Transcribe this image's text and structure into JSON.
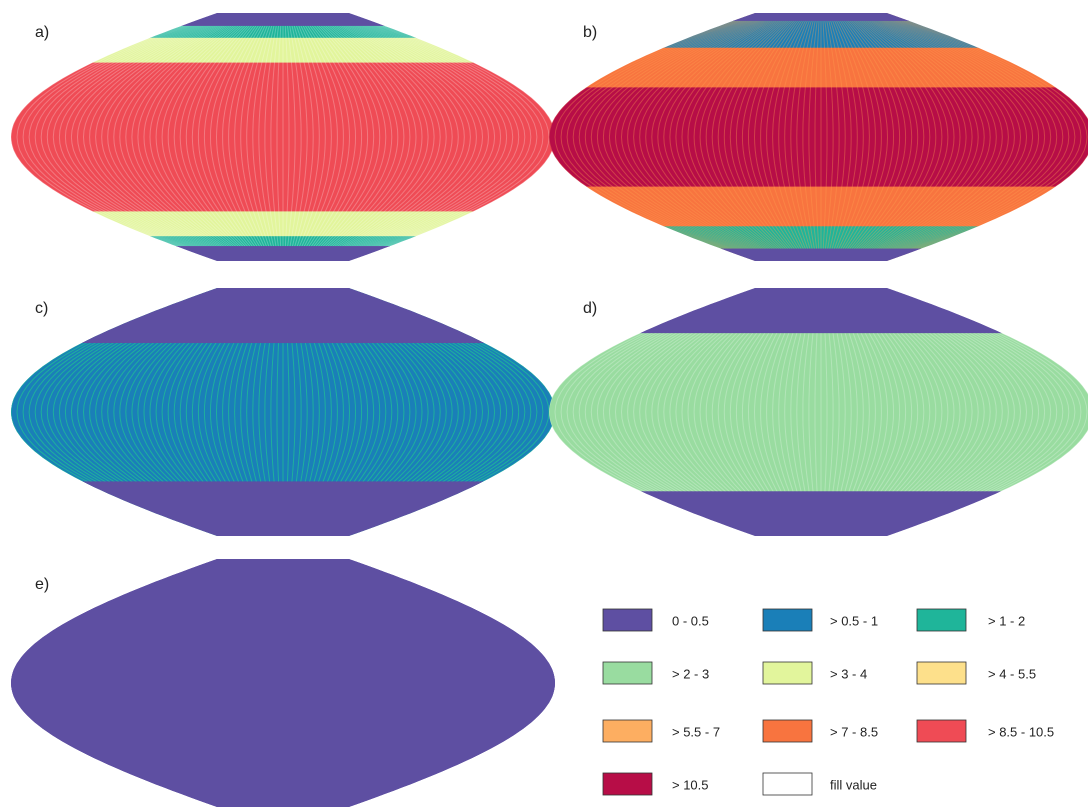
{
  "panels": [
    {
      "label": "a)"
    },
    {
      "label": "b)"
    },
    {
      "label": "c)"
    },
    {
      "label": "d)"
    },
    {
      "label": "e)"
    }
  ],
  "legend": {
    "items": [
      {
        "label": "0 - 0.5",
        "color": "#5e4fa2"
      },
      {
        "label": "> 0.5 - 1",
        "color": "#1a7fb8"
      },
      {
        "label": "> 1 - 2",
        "color": "#1fb59a"
      },
      {
        "label": "> 2 - 3",
        "color": "#99dca0"
      },
      {
        "label": "> 3 - 4",
        "color": "#e2f59c"
      },
      {
        "label": "> 4 - 5.5",
        "color": "#fde08b"
      },
      {
        "label": "> 5.5 - 7",
        "color": "#fdae61"
      },
      {
        "label": "> 7 - 8.5",
        "color": "#f8743f"
      },
      {
        "label": "> 8.5 - 10.5",
        "color": "#ef4b55"
      },
      {
        "label": "> 10.5",
        "color": "#b70d47"
      },
      {
        "label": "fill value",
        "color": "#ffffff"
      }
    ]
  }
}
